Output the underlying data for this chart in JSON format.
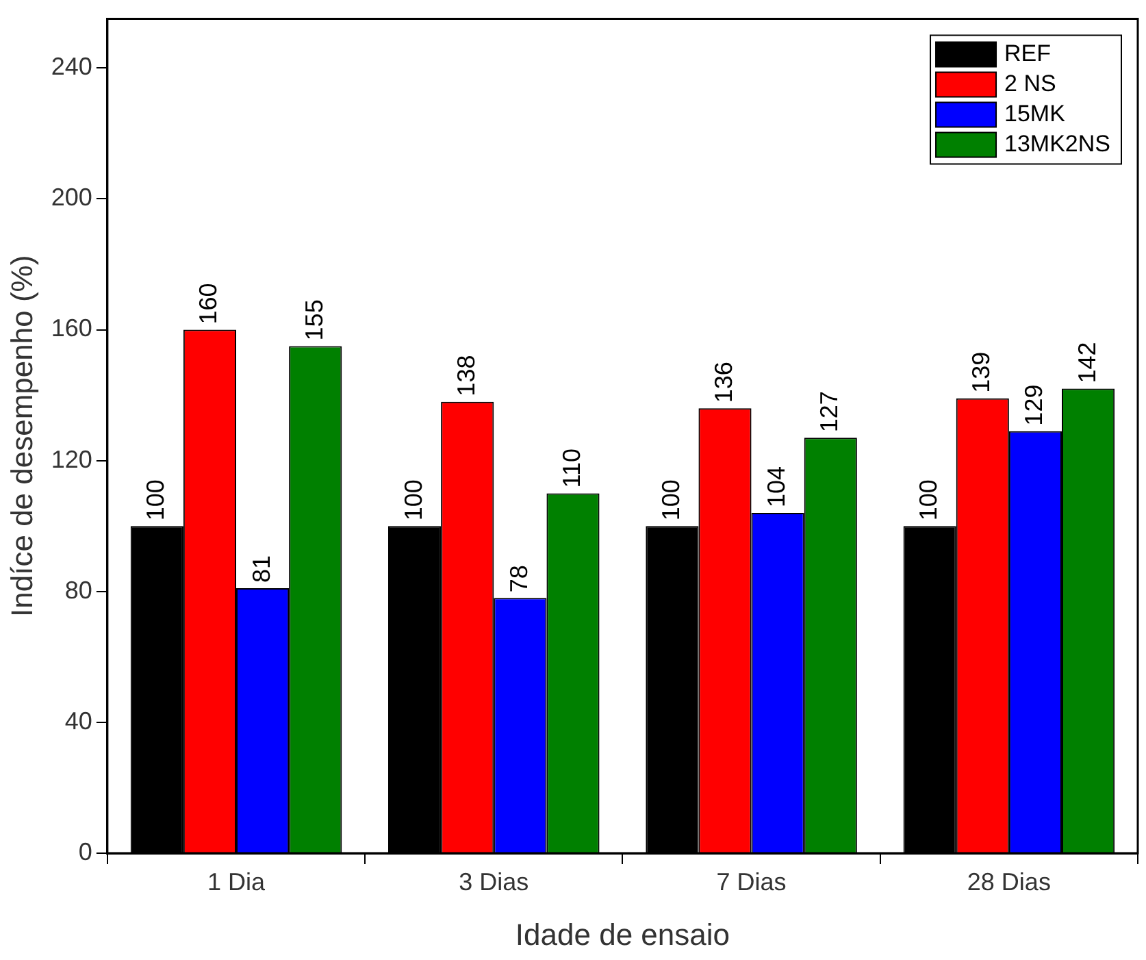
{
  "chart_data": {
    "type": "bar",
    "xlabel": "Idade de ensaio",
    "ylabel": "Indíce de desempenho (%)",
    "categories": [
      "1 Dia",
      "3 Dias",
      "7 Dias",
      "28 Dias"
    ],
    "series": [
      {
        "name": "REF",
        "color": "#000000",
        "values": [
          100,
          100,
          100,
          100
        ]
      },
      {
        "name": "2 NS",
        "color": "#ff0000",
        "values": [
          160,
          138,
          136,
          139
        ]
      },
      {
        "name": "15MK",
        "color": "#0000ff",
        "values": [
          81,
          78,
          104,
          129
        ]
      },
      {
        "name": "13MK2NS",
        "color": "#008000",
        "values": [
          155,
          110,
          127,
          142
        ]
      }
    ],
    "ylim": [
      0,
      255
    ],
    "yticks": [
      0,
      40,
      80,
      120,
      160,
      200,
      240
    ],
    "grid": false,
    "legend": "top right",
    "data_labels": true
  }
}
